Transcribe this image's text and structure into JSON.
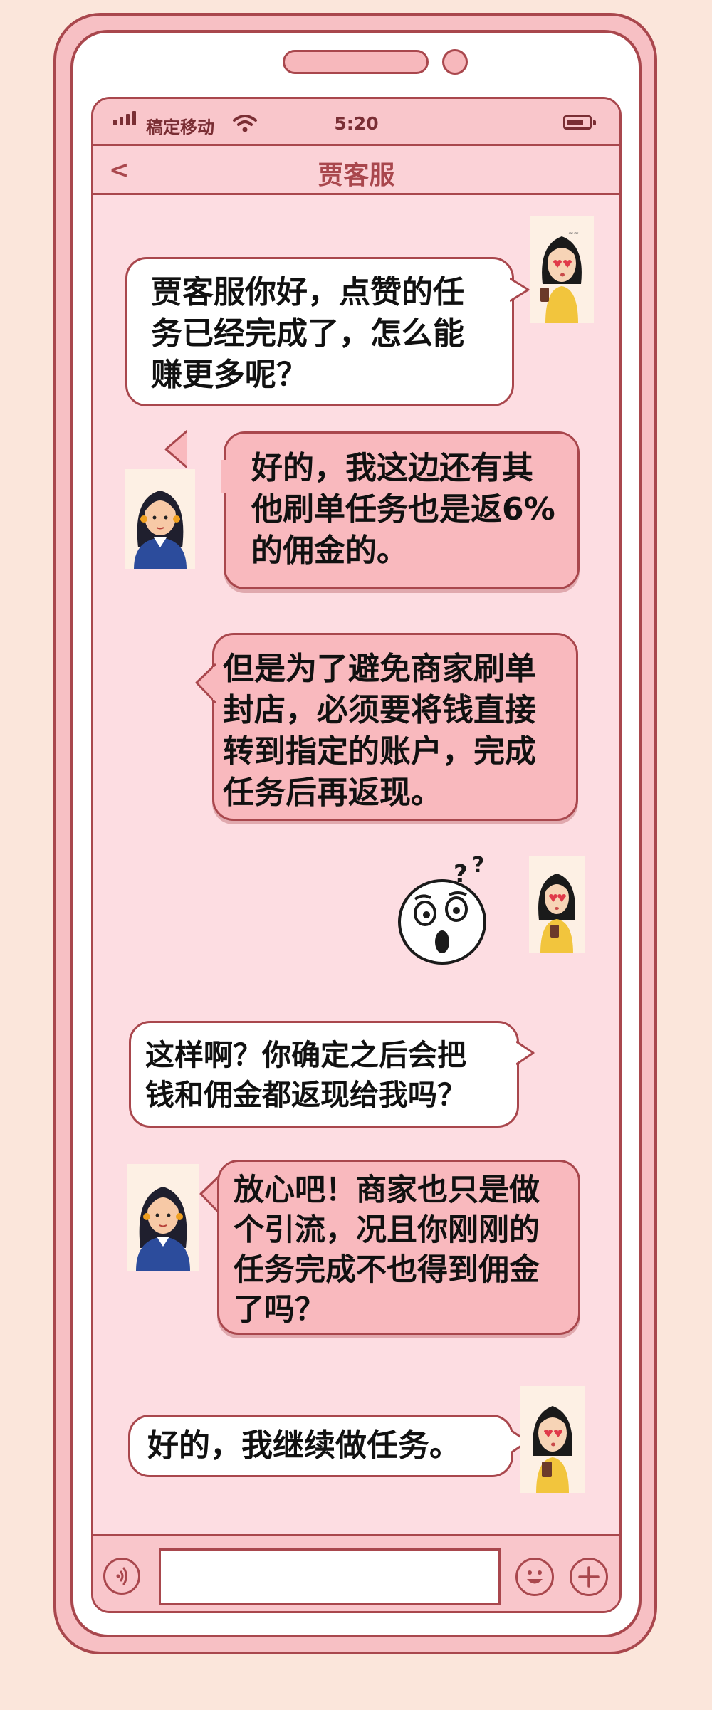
{
  "status_bar": {
    "carrier": "稿定移动",
    "time": "5:20",
    "battery_level": 0.8
  },
  "header": {
    "back_label": "<",
    "title": "贾客服"
  },
  "messages": [
    {
      "sender": "user",
      "text": "贾客服你好，点赞的任\n务已经完成了，怎么能\n赚更多呢？"
    },
    {
      "sender": "agent",
      "text": "好的，我这边还有其\n他刷单任务也是返6%\n的佣金的。"
    },
    {
      "sender": "agent",
      "text": "但是为了避免商家刷单\n封店，必须要将钱直接\n转到指定的账户，完成\n任务后再返现。"
    },
    {
      "sender": "user",
      "text": "这样啊？你确定之后会把\n钱和佣金都返现给我吗？"
    },
    {
      "sender": "agent",
      "text": "放心吧！商家也只是做\n个引流，况且你刚刚的\n任务完成不也得到佣金\n了吗？"
    },
    {
      "sender": "user",
      "text": "好的，我继续做任务。"
    }
  ],
  "sticker": {
    "icon": "confused-face-sticker-icon"
  },
  "input_bar": {
    "placeholder": ""
  },
  "colors": {
    "background": "#fbe6db",
    "phone": "#f7c0c4",
    "outline": "#a9474d",
    "screen": "#fddde2",
    "agent_bubble": "#f9b9be",
    "user_bubble": "#ffffff"
  }
}
